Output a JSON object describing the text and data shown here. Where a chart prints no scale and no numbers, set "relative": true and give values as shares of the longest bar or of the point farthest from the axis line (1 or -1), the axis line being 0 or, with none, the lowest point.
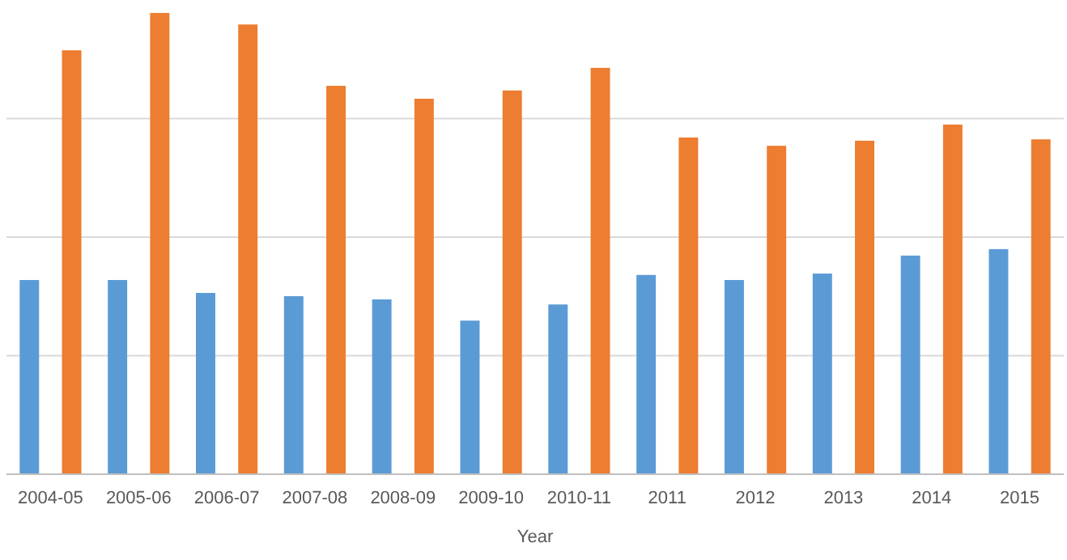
{
  "chart_data": {
    "type": "bar",
    "xlabel": "Year",
    "relative": true,
    "grid": "y",
    "categories": [
      "2004-05",
      "2005-06",
      "2006-07",
      "2007-08",
      "2008-09",
      "2009-10",
      "2010-11",
      "2011",
      "2012",
      "2013",
      "2014",
      "2015"
    ],
    "series": [
      {
        "color": "#5b9bd5",
        "values": [
          0.421,
          0.421,
          0.393,
          0.386,
          0.379,
          0.333,
          0.368,
          0.432,
          0.421,
          0.435,
          0.474,
          0.488
        ]
      },
      {
        "color": "#ed7d31",
        "values": [
          0.919,
          1,
          0.975,
          0.842,
          0.814,
          0.832,
          0.881,
          0.73,
          0.712,
          0.723,
          0.758,
          0.726
        ]
      }
    ]
  }
}
